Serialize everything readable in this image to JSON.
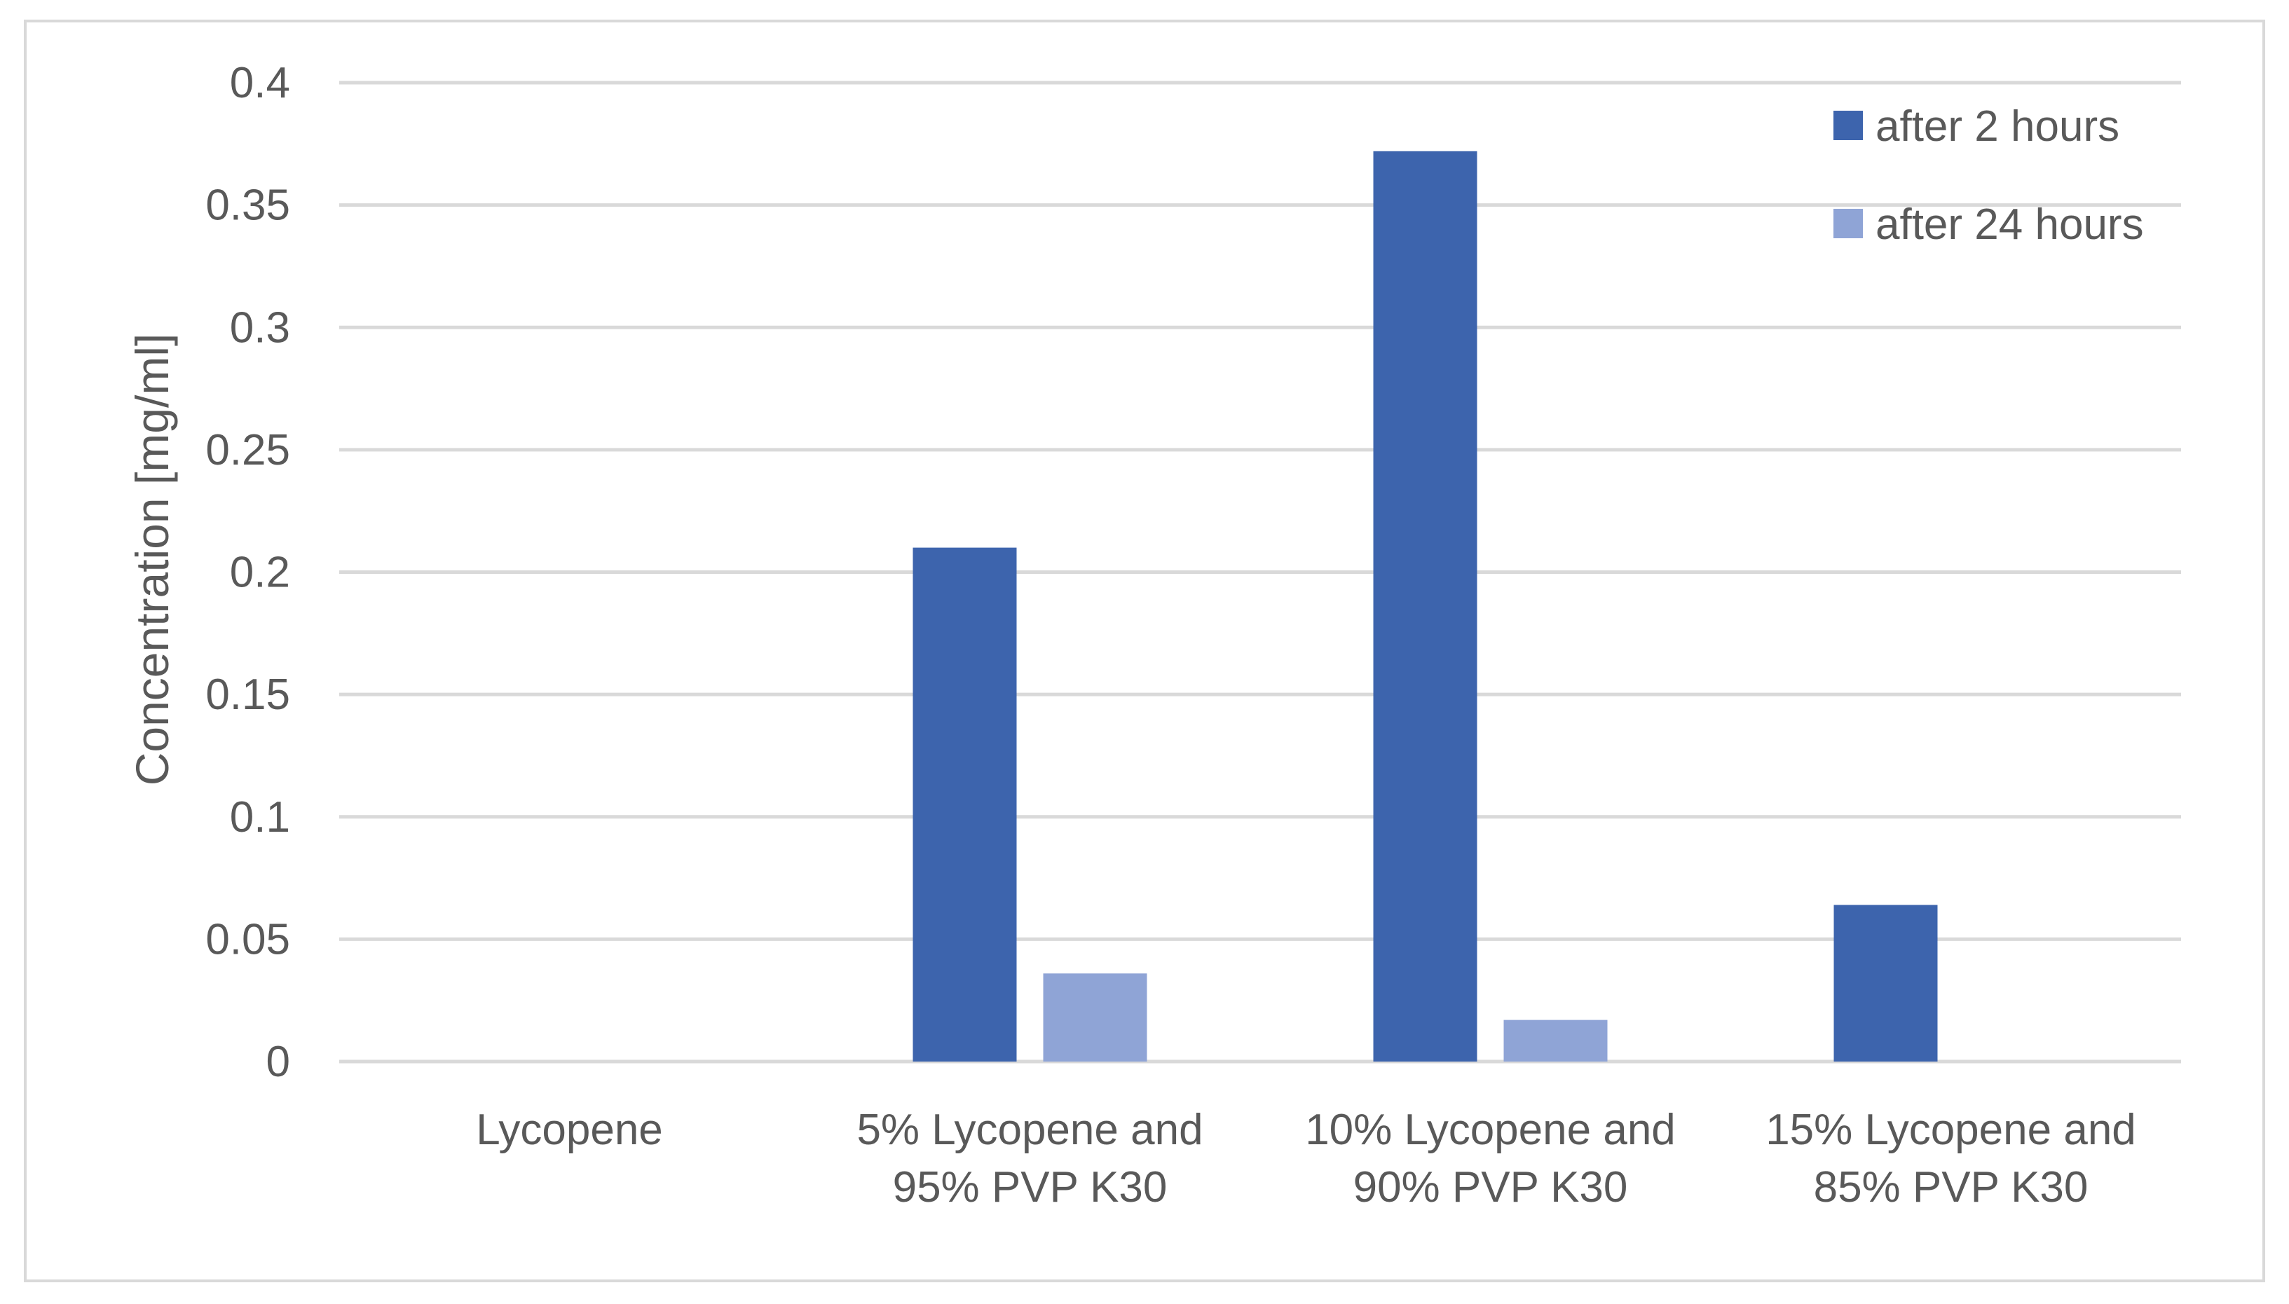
{
  "chart_data": {
    "type": "bar",
    "categories": [
      [
        "Lycopene"
      ],
      [
        "5% Lycopene and",
        "95% PVP K30"
      ],
      [
        "10% Lycopene and",
        "90% PVP K30"
      ],
      [
        "15% Lycopene and",
        "85% PVP K30"
      ]
    ],
    "series": [
      {
        "name": "after 2 hours",
        "color": "#3d64ad",
        "values": [
          0,
          0.21,
          0.372,
          0.064
        ]
      },
      {
        "name": "after 24 hours",
        "color": "#8fa4d6",
        "values": [
          0,
          0.036,
          0.017,
          0
        ]
      }
    ],
    "ylabel": "Concentration [mg/ml]",
    "xlabel": "",
    "ylim": [
      0,
      0.4
    ],
    "yticks": [
      "0",
      "0.05",
      "0.1",
      "0.15",
      "0.2",
      "0.25",
      "0.3",
      "0.35",
      "0.4"
    ],
    "grid": true,
    "legend_position": "top-right",
    "colors": {
      "gridline": "#d9d9d9",
      "text": "#595959",
      "border": "#d9d9d9"
    }
  }
}
